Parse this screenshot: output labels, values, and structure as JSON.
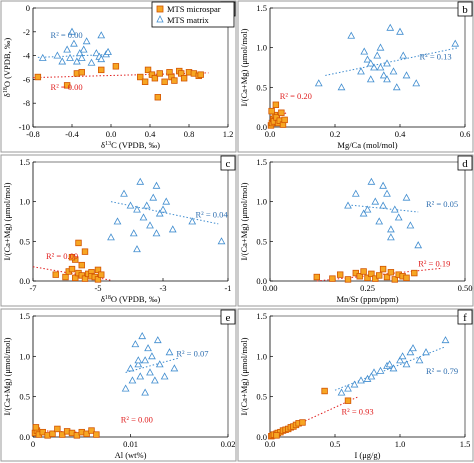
{
  "colors": {
    "microspar_fill": "#f6a623",
    "microspar_edge": "#d35400",
    "matrix_edge": "#3f8ccf",
    "microspar_text": "#e02020",
    "matrix_text": "#2f6fb0"
  },
  "legend": {
    "location": "top-left of panel a",
    "items": [
      "MTS microspar",
      "MTS matrix"
    ]
  },
  "chart_data": [
    {
      "panel": "a",
      "type": "scatter",
      "xlabel": "δ13C (VPDB, ‰)",
      "ylabel": "δ18O (VPDB, ‰)",
      "xlim": [
        -0.8,
        1.2
      ],
      "ylim": [
        -10,
        0
      ],
      "xticks": [
        -0.8,
        -0.4,
        0,
        0.4,
        0.8,
        1.2
      ],
      "xticklabels": [
        "-0.8",
        "-0.4",
        "0.0",
        "0.4",
        "0.8",
        "1.2"
      ],
      "yticks": [
        -10,
        -8,
        -6,
        -4,
        -2,
        0
      ],
      "yticklabels": [
        "-10",
        "-8",
        "-6",
        "-4",
        "-2",
        "0"
      ],
      "grid": false,
      "series": [
        {
          "name": "MTS microspar",
          "marker": "square",
          "x": [
            -0.75,
            -0.45,
            -0.35,
            -0.3,
            -0.1,
            0.05,
            0.3,
            0.35,
            0.38,
            0.42,
            0.45,
            0.48,
            0.5,
            0.55,
            0.6,
            0.62,
            0.65,
            0.7,
            0.72,
            0.75,
            0.8,
            0.85,
            0.9,
            0.92
          ],
          "y": [
            -5.8,
            -6.5,
            -5.5,
            -5.4,
            -5.2,
            -4.9,
            -5.8,
            -6.2,
            -5.2,
            -5.6,
            -5.9,
            -7.5,
            -5.5,
            -6.2,
            -5.4,
            -5.8,
            -6.1,
            -5.3,
            -5.5,
            -5.9,
            -5.4,
            -5.5,
            -5.7,
            -5.6
          ],
          "trend": {
            "x": [
              -0.8,
              1.0
            ],
            "y": [
              -5.85,
              -5.45
            ]
          },
          "r2": "R² = 0.00"
        },
        {
          "name": "MTS matrix",
          "marker": "triangle",
          "x": [
            -0.7,
            -0.55,
            -0.5,
            -0.45,
            -0.42,
            -0.4,
            -0.38,
            -0.35,
            -0.32,
            -0.3,
            -0.28,
            -0.25,
            -0.2,
            -0.15,
            -0.12,
            -0.1,
            -0.1,
            -0.05,
            -0.03
          ],
          "y": [
            -4.2,
            -4.0,
            -4.5,
            -3.5,
            -4.2,
            -2.0,
            -3.0,
            -4.5,
            -3.8,
            -4.2,
            -3.5,
            -2.8,
            -4.6,
            -3.8,
            -4.1,
            -4.3,
            -2.3,
            -3.9,
            -3.7
          ],
          "trend": {
            "x": [
              -0.75,
              0.0
            ],
            "y": [
              -4.15,
              -3.9
            ]
          },
          "r2": "R² = 0.00"
        }
      ]
    },
    {
      "panel": "b",
      "type": "scatter",
      "xlabel": "Mg/Ca (mol/mol)",
      "ylabel": "I/(Ca+Mg) (μmol/mol)",
      "xlim": [
        0,
        0.6
      ],
      "ylim": [
        0,
        1.5
      ],
      "xticks": [
        0,
        0.2,
        0.4,
        0.6
      ],
      "xticklabels": [
        "0.0",
        "0.2",
        "0.4",
        "0.6"
      ],
      "yticks": [
        0,
        0.5,
        1.0,
        1.5
      ],
      "yticklabels": [
        "0.0",
        "0.5",
        "1.0",
        "1.5"
      ],
      "grid": false,
      "series": [
        {
          "name": "MTS microspar",
          "marker": "square",
          "x": [
            0.003,
            0.006,
            0.01,
            0.012,
            0.015,
            0.02,
            0.025,
            0.03,
            0.035,
            0.04,
            0.045,
            0.005,
            0.018
          ],
          "y": [
            0.02,
            0.05,
            0.1,
            0.07,
            0.15,
            0.12,
            0.05,
            0.08,
            0.18,
            0.03,
            0.09,
            0.2,
            0.28
          ],
          "trend": {
            "x": [
              0.0,
              0.05
            ],
            "y": [
              0.05,
              0.18
            ]
          },
          "r2": "R² = 0.20"
        },
        {
          "name": "MTS matrix",
          "marker": "triangle",
          "x": [
            0.15,
            0.22,
            0.25,
            0.28,
            0.29,
            0.3,
            0.31,
            0.32,
            0.33,
            0.34,
            0.35,
            0.36,
            0.37,
            0.38,
            0.39,
            0.4,
            0.41,
            0.42,
            0.45,
            0.57,
            0.31,
            0.34,
            0.36
          ],
          "y": [
            0.55,
            0.5,
            1.15,
            0.7,
            0.95,
            0.85,
            0.6,
            0.75,
            0.9,
            1.0,
            0.65,
            0.8,
            1.25,
            0.7,
            0.5,
            1.2,
            0.9,
            0.65,
            0.55,
            1.05,
            0.8,
            0.75,
            0.6
          ],
          "trend": {
            "x": [
              0.17,
              0.58
            ],
            "y": [
              0.65,
              1.0
            ]
          },
          "r2": "R² = 0.13"
        }
      ]
    },
    {
      "panel": "c",
      "type": "scatter",
      "xlabel": "δ18O (VPDB, ‰)",
      "ylabel": "I/(Ca+Mg) (μmol/mol)",
      "xlim": [
        -7,
        -1
      ],
      "ylim": [
        0,
        1.5
      ],
      "xticks": [
        -7,
        -5,
        -3,
        -1
      ],
      "xticklabels": [
        "-7",
        "-5",
        "-3",
        "-1"
      ],
      "yticks": [
        0,
        0.5,
        1.0,
        1.5
      ],
      "yticklabels": [
        "0.0",
        "0.5",
        "1.0",
        "1.5"
      ],
      "grid": false,
      "series": [
        {
          "name": "MTS microspar",
          "marker": "square",
          "x": [
            -6.3,
            -6.0,
            -5.9,
            -5.8,
            -5.7,
            -5.6,
            -5.5,
            -5.5,
            -5.4,
            -5.3,
            -5.2,
            -5.2,
            -5.1,
            -5.0,
            -5.0,
            -4.9,
            -5.7,
            -5.6,
            -5.4,
            -5.8
          ],
          "y": [
            0.08,
            0.05,
            0.12,
            0.15,
            0.04,
            0.1,
            0.07,
            0.2,
            0.03,
            0.09,
            0.11,
            0.06,
            0.05,
            0.14,
            0.02,
            0.08,
            0.27,
            0.48,
            0.37,
            0.3
          ],
          "trend": {
            "x": [
              -7.0,
              -4.6
            ],
            "y": [
              0.18,
              0.01
            ]
          },
          "r2": "R² = 0.09"
        },
        {
          "name": "MTS matrix",
          "marker": "triangle",
          "x": [
            -4.6,
            -4.4,
            -4.2,
            -4.0,
            -3.9,
            -3.8,
            -3.7,
            -3.6,
            -3.5,
            -3.4,
            -3.3,
            -3.2,
            -3.1,
            -3.0,
            -2.9,
            -2.7,
            -2.1,
            -1.2,
            -3.8,
            -3.2
          ],
          "y": [
            0.55,
            0.75,
            1.1,
            0.95,
            0.6,
            0.9,
            1.25,
            0.8,
            0.95,
            0.7,
            1.05,
            1.2,
            0.85,
            0.9,
            1.0,
            0.65,
            0.75,
            0.5,
            0.4,
            0.6
          ],
          "trend": {
            "x": [
              -4.6,
              -1.3
            ],
            "y": [
              1.0,
              0.72
            ]
          },
          "r2": "R² = 0.04"
        }
      ]
    },
    {
      "panel": "d",
      "type": "scatter",
      "xlabel": "Mn/Sr (ppm/ppm)",
      "ylabel": "I/(Ca+Mg) (μmol/mol)",
      "xlim": [
        0,
        0.5
      ],
      "ylim": [
        0,
        1.5
      ],
      "xticks": [
        0,
        0.25,
        0.5
      ],
      "xticklabels": [
        "0.00",
        "0.25",
        "0.50"
      ],
      "yticks": [
        0,
        0.5,
        1.0,
        1.5
      ],
      "yticklabels": [
        "0.0",
        "0.5",
        "1.0",
        "1.5"
      ],
      "grid": false,
      "series": [
        {
          "name": "MTS microspar",
          "marker": "square",
          "x": [
            0.12,
            0.16,
            0.18,
            0.2,
            0.22,
            0.23,
            0.24,
            0.25,
            0.26,
            0.27,
            0.28,
            0.29,
            0.3,
            0.31,
            0.32,
            0.33,
            0.34,
            0.35,
            0.37
          ],
          "y": [
            0.05,
            0.03,
            0.08,
            0.02,
            0.1,
            0.06,
            0.12,
            0.04,
            0.09,
            0.03,
            0.07,
            0.15,
            0.05,
            0.11,
            0.02,
            0.08,
            0.06,
            0.04,
            0.1
          ],
          "trend": {
            "x": [
              0.12,
              0.44
            ],
            "y": [
              0.0,
              0.16
            ]
          },
          "r2": "R² = 0.19"
        },
        {
          "name": "MTS matrix",
          "marker": "triangle",
          "x": [
            0.2,
            0.22,
            0.24,
            0.25,
            0.26,
            0.27,
            0.28,
            0.29,
            0.3,
            0.31,
            0.32,
            0.33,
            0.35,
            0.36,
            0.38,
            0.29,
            0.31
          ],
          "y": [
            0.95,
            1.1,
            0.85,
            0.9,
            1.25,
            1.0,
            0.75,
            0.95,
            1.1,
            0.55,
            0.9,
            0.8,
            1.05,
            0.7,
            0.45,
            1.2,
            0.65
          ],
          "trend": {
            "x": [
              0.2,
              0.38
            ],
            "y": [
              0.96,
              0.87
            ]
          },
          "r2": "R² = 0.05"
        }
      ]
    },
    {
      "panel": "e",
      "type": "scatter",
      "xlabel": "Al (wt%)",
      "ylabel": "I/(Ca+Mg) (μmol/mol)",
      "xlim": [
        0,
        0.02
      ],
      "ylim": [
        0,
        1.5
      ],
      "xticks": [
        0,
        0.01,
        0.02
      ],
      "xticklabels": [
        "0",
        "0.01",
        "0.02"
      ],
      "yticks": [
        0,
        0.5,
        1.0,
        1.5
      ],
      "yticklabels": [
        "0.0",
        "0.5",
        "1.0",
        "1.5"
      ],
      "grid": false,
      "series": [
        {
          "name": "MTS microspar",
          "marker": "square",
          "x": [
            0.0002,
            0.0004,
            0.0006,
            0.001,
            0.0015,
            0.002,
            0.0025,
            0.003,
            0.0035,
            0.004,
            0.0045,
            0.005,
            0.0055,
            0.006,
            0.0065,
            0.0003
          ],
          "y": [
            0.05,
            0.08,
            0.03,
            0.06,
            0.02,
            0.04,
            0.1,
            0.03,
            0.07,
            0.05,
            0.02,
            0.06,
            0.04,
            0.08,
            0.03,
            0.12
          ],
          "trend": {
            "x": [
              0.0,
              0.0068
            ],
            "y": [
              0.08,
              0.05
            ]
          },
          "r2": "R² = 0.00"
        },
        {
          "name": "MTS matrix",
          "marker": "triangle",
          "x": [
            0.0095,
            0.01,
            0.0102,
            0.0105,
            0.0108,
            0.011,
            0.0112,
            0.0115,
            0.0118,
            0.012,
            0.0122,
            0.0125,
            0.0128,
            0.013,
            0.0135,
            0.014,
            0.0145,
            0.0115,
            0.0108
          ],
          "y": [
            0.6,
            0.85,
            0.7,
            1.15,
            0.9,
            0.75,
            1.25,
            0.95,
            1.1,
            0.8,
            1.0,
            0.7,
            1.2,
            0.9,
            0.75,
            1.05,
            0.85,
            0.55,
            0.95
          ],
          "trend": {
            "x": [
              0.0095,
              0.015
            ],
            "y": [
              0.8,
              0.98
            ]
          },
          "r2": "R² = 0.07"
        }
      ]
    },
    {
      "panel": "f",
      "type": "scatter",
      "xlabel": "I (μg/g)",
      "ylabel": "I/(Ca+Mg) (μmol/mol)",
      "xlim": [
        0,
        1.5
      ],
      "ylim": [
        0,
        1.5
      ],
      "xticks": [
        0,
        0.5,
        1.0,
        1.5
      ],
      "xticklabels": [
        "0.0",
        "0.5",
        "1.0",
        "1.5"
      ],
      "yticks": [
        0,
        0.5,
        1.0,
        1.5
      ],
      "yticklabels": [
        "0.0",
        "0.5",
        "1.0",
        "1.5"
      ],
      "grid": false,
      "series": [
        {
          "name": "MTS microspar",
          "marker": "square",
          "x": [
            0.01,
            0.02,
            0.03,
            0.05,
            0.06,
            0.08,
            0.1,
            0.12,
            0.14,
            0.16,
            0.18,
            0.2,
            0.22,
            0.25,
            0.05,
            0.42,
            0.6
          ],
          "y": [
            0.01,
            0.02,
            0.03,
            0.04,
            0.05,
            0.06,
            0.08,
            0.09,
            0.1,
            0.12,
            0.13,
            0.15,
            0.17,
            0.18,
            0.02,
            0.57,
            0.45
          ],
          "trend": {
            "x": [
              0.0,
              0.68
            ],
            "y": [
              0.0,
              0.5
            ]
          },
          "r2": "R² = 0.93"
        },
        {
          "name": "MTS matrix",
          "marker": "triangle",
          "x": [
            0.55,
            0.6,
            0.65,
            0.7,
            0.75,
            0.8,
            0.85,
            0.9,
            0.92,
            0.95,
            1.0,
            1.02,
            1.05,
            1.08,
            1.1,
            1.15,
            1.2,
            1.35,
            0.78
          ],
          "y": [
            0.55,
            0.6,
            0.65,
            0.7,
            0.72,
            0.8,
            0.82,
            0.88,
            0.9,
            0.85,
            0.95,
            1.0,
            0.9,
            1.05,
            1.1,
            0.95,
            1.05,
            1.2,
            0.75
          ],
          "trend": {
            "x": [
              0.5,
              1.35
            ],
            "y": [
              0.58,
              1.12
            ]
          },
          "r2": "R² = 0.79"
        }
      ]
    }
  ]
}
